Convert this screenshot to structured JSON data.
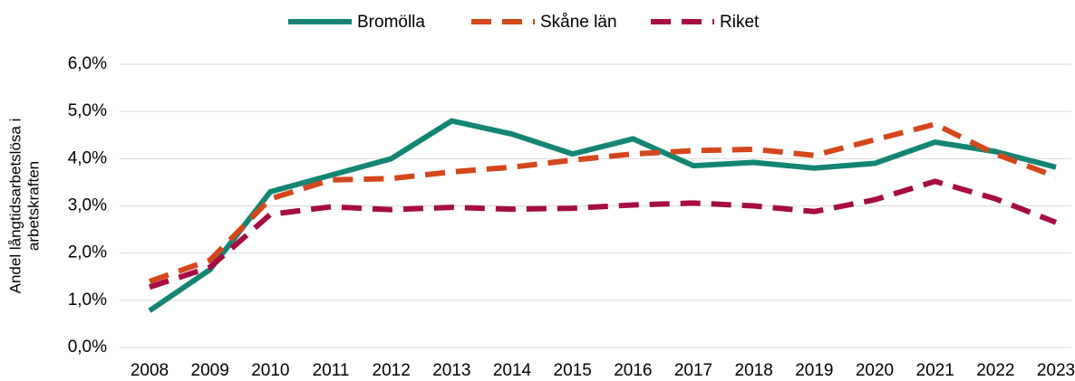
{
  "chart_data": {
    "type": "line",
    "ylabel": [
      "Andel långtidsarbetslösa i",
      "arbetskraften"
    ],
    "categories": [
      "2008",
      "2009",
      "2010",
      "2011",
      "2012",
      "2013",
      "2014",
      "2015",
      "2016",
      "2017",
      "2018",
      "2019",
      "2020",
      "2021",
      "2022",
      "2023"
    ],
    "series": [
      {
        "name": "Bromölla",
        "color": "#148573",
        "dash": "solid",
        "values": [
          0.78,
          1.65,
          3.3,
          3.65,
          4.0,
          4.8,
          4.52,
          4.1,
          4.42,
          3.85,
          3.92,
          3.8,
          3.9,
          4.35,
          4.15,
          3.82
        ]
      },
      {
        "name": "Skåne län",
        "color": "#d4471c",
        "dash": "dashed",
        "values": [
          1.4,
          1.85,
          3.15,
          3.55,
          3.58,
          3.72,
          3.82,
          3.97,
          4.1,
          4.17,
          4.2,
          4.07,
          4.4,
          4.73,
          4.1,
          3.62
        ]
      },
      {
        "name": "Riket",
        "color": "#a50d44",
        "dash": "dashed",
        "values": [
          1.28,
          1.7,
          2.82,
          2.98,
          2.92,
          2.97,
          2.93,
          2.95,
          3.02,
          3.06,
          3.0,
          2.88,
          3.13,
          3.52,
          3.15,
          2.65
        ]
      }
    ],
    "ylim": [
      0,
      6
    ],
    "yticks": [
      {
        "value": 0,
        "label": "0,0%"
      },
      {
        "value": 1,
        "label": "1,0%"
      },
      {
        "value": 2,
        "label": "2,0%"
      },
      {
        "value": 3,
        "label": "3,0%"
      },
      {
        "value": 4,
        "label": "4,0%"
      },
      {
        "value": 5,
        "label": "5,0%"
      },
      {
        "value": 6,
        "label": "6,0%"
      }
    ],
    "grid": true,
    "legend": "top"
  }
}
